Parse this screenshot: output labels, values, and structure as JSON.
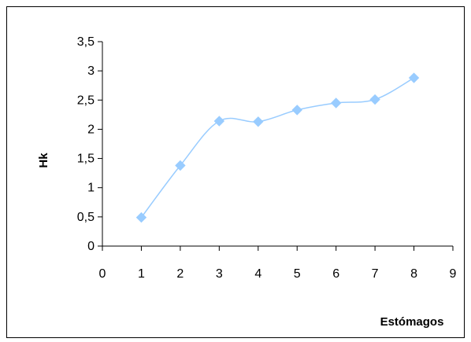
{
  "chart_data": {
    "type": "scatter",
    "line": "smooth",
    "title": "",
    "xlabel": "Estómagos",
    "ylabel": "Hk",
    "xlim": [
      0,
      9
    ],
    "ylim": [
      0,
      3.5
    ],
    "xticks": [
      0,
      1,
      2,
      3,
      4,
      5,
      6,
      7,
      8,
      9
    ],
    "yticks": [
      0,
      0.5,
      1,
      1.5,
      2,
      2.5,
      3,
      3.5
    ],
    "x_tick_labels": [
      "0",
      "1",
      "2",
      "3",
      "4",
      "5",
      "6",
      "7",
      "8",
      "9"
    ],
    "y_tick_labels": [
      "0",
      "0,5",
      "1",
      "1,5",
      "2",
      "2,5",
      "3",
      "3,5"
    ],
    "grid": false,
    "legend": "none",
    "series": [
      {
        "x": [
          1,
          2,
          3,
          4,
          5,
          6,
          7,
          8
        ],
        "y": [
          0.49,
          1.38,
          2.14,
          2.13,
          2.33,
          2.45,
          2.51,
          2.88
        ],
        "color": "#99ccff"
      }
    ]
  }
}
